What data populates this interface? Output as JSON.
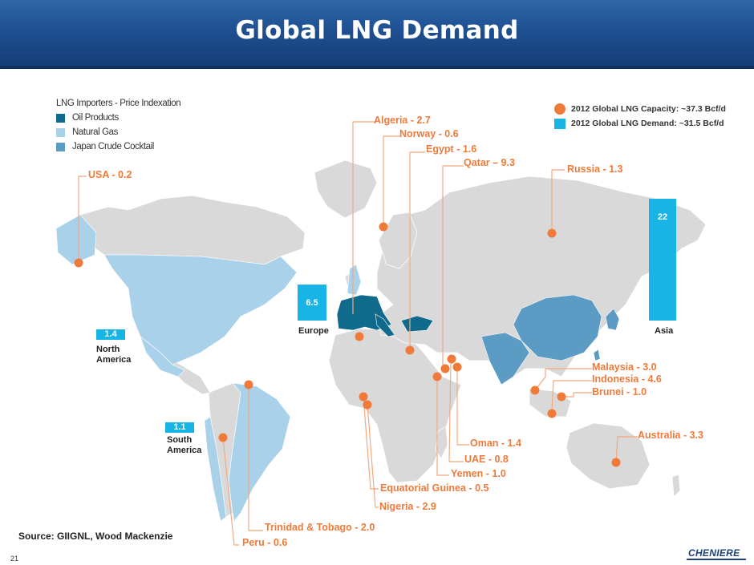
{
  "header": {
    "title": "Global LNG Demand"
  },
  "legend": {
    "title": "LNG Importers - Price Indexation",
    "items": [
      {
        "label": "Oil Products",
        "color": "#0f6a8c"
      },
      {
        "label": "Natural Gas",
        "color": "#a9d2ea"
      },
      {
        "label": "Japan Crude Cocktail",
        "color": "#5b9bc4"
      }
    ]
  },
  "key": {
    "capacity": "2012 Global LNG Capacity: ~37.3 Bcf/d",
    "demand": "2012 Global LNG Demand:  ~31.5 Bcf/d"
  },
  "chart_data": {
    "type": "bar",
    "title": "",
    "categories": [
      "North America",
      "South America",
      "Europe",
      "Asia"
    ],
    "values": [
      1.4,
      1.1,
      6.5,
      22
    ],
    "value_labels": [
      "1.4",
      "1.1",
      "6.5",
      "22"
    ],
    "unit": "Bcf/d"
  },
  "exporters": [
    {
      "label": "USA - 0.2"
    },
    {
      "label": "Algeria - 2.7"
    },
    {
      "label": "Norway - 0.6"
    },
    {
      "label": "Egypt - 1.6"
    },
    {
      "label": "Qatar – 9.3"
    },
    {
      "label": "Russia - 1.3"
    },
    {
      "label": "Malaysia - 3.0"
    },
    {
      "label": "Indonesia - 4.6"
    },
    {
      "label": "Brunei - 1.0"
    },
    {
      "label": "Australia - 3.3"
    },
    {
      "label": "Oman - 1.4"
    },
    {
      "label": "UAE - 0.8"
    },
    {
      "label": "Yemen - 1.0"
    },
    {
      "label": "Equatorial Guinea - 0.5"
    },
    {
      "label": "Nigeria - 2.9"
    },
    {
      "label": "Trinidad & Tobago - 2.0"
    },
    {
      "label": "Peru - 0.6"
    }
  ],
  "colors": {
    "exporter": "#f07a3a",
    "demand_bar": "#18b4e6",
    "land": "#d9d9d9"
  },
  "footer": {
    "source": "Source: GIIGNL, Wood Mackenzie",
    "page": "21",
    "logo": "CHENIERE"
  }
}
